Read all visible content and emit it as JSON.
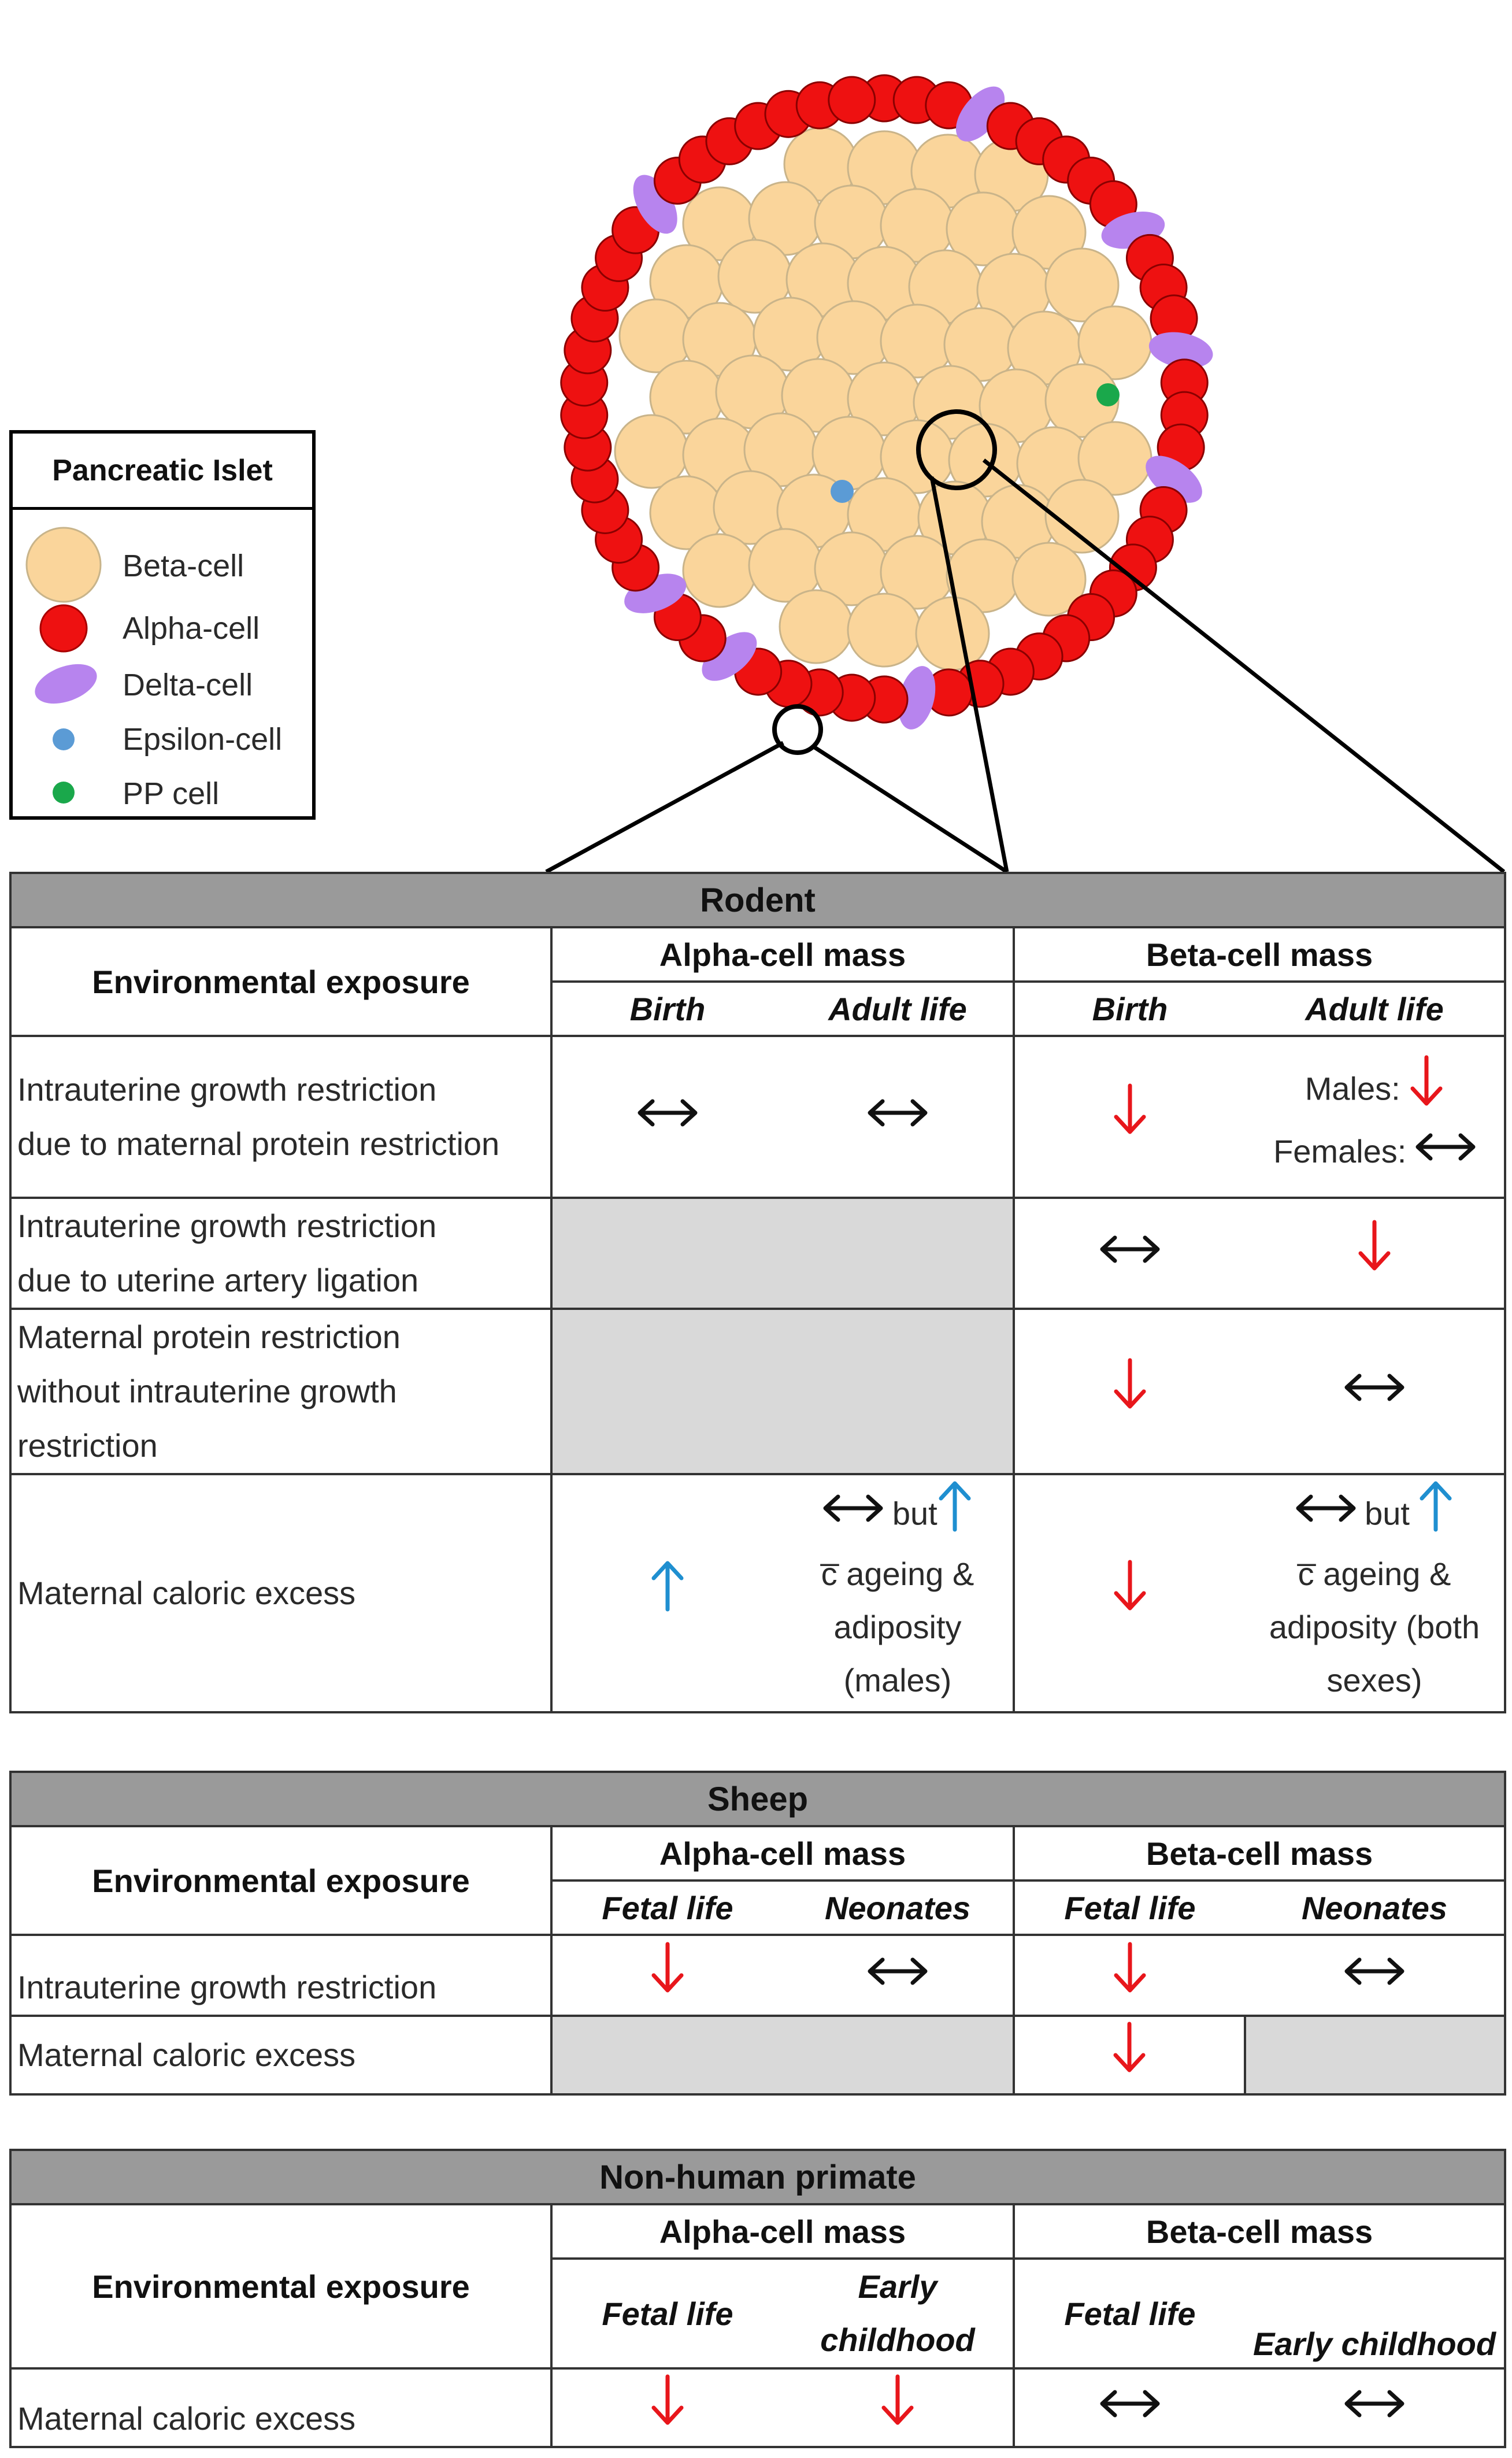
{
  "legend": {
    "title": "Pancreatic Islet",
    "items": [
      {
        "label": "Beta-cell",
        "color": "#fad59b"
      },
      {
        "label": "Alpha-cell",
        "color": "#ee1111"
      },
      {
        "label": "Delta-cell",
        "color": "#b784ee"
      },
      {
        "label": "Epsilon-cell",
        "color": "#5b9bd5"
      },
      {
        "label": "PP cell",
        "color": "#1aa84b"
      }
    ]
  },
  "arrows": {
    "down_color": "#e8161b",
    "up_color": "#1f8fd0",
    "flat_color": "#111111"
  },
  "rodent": {
    "title": "Rodent",
    "exposure_header": "Environmental exposure",
    "alpha_header": "Alpha-cell mass",
    "beta_header": "Beta-cell mass",
    "sub_headers": [
      "Birth",
      "Adult life",
      "Birth",
      "Adult life"
    ],
    "rows": [
      {
        "exposure": [
          "Intrauterine growth restriction",
          "due to maternal protein restriction"
        ],
        "alpha_birth": "flat",
        "alpha_adult": "flat",
        "beta_birth": "down",
        "beta_adult_males": "Males:",
        "beta_adult_females": "Females:"
      },
      {
        "exposure": [
          "Intrauterine growth restriction",
          "due to uterine artery ligation"
        ],
        "beta_birth": "flat",
        "beta_adult": "down"
      },
      {
        "exposure": [
          "Maternal protein restriction",
          "without intrauterine growth",
          "restriction"
        ],
        "beta_birth": "down",
        "beta_adult": "flat"
      },
      {
        "exposure": [
          "Maternal caloric excess"
        ],
        "alpha_birth": "up",
        "alpha_adult_text": [
          "but",
          "c̅ ageing &",
          "adiposity",
          "(males)"
        ],
        "beta_birth": "down",
        "beta_adult_text": [
          "but",
          "c̅ ageing &",
          "adiposity (both",
          "sexes)"
        ]
      }
    ]
  },
  "sheep": {
    "title": "Sheep",
    "exposure_header": "Environmental exposure",
    "alpha_header": "Alpha-cell mass",
    "beta_header": "Beta-cell mass",
    "sub_headers": [
      "Fetal life",
      "Neonates",
      "Fetal life",
      "Neonates"
    ],
    "rows": [
      {
        "exposure": "Intrauterine growth restriction"
      },
      {
        "exposure": "Maternal caloric excess"
      }
    ]
  },
  "primate": {
    "title": "Non-human primate",
    "exposure_header": "Environmental exposure",
    "alpha_header": "Alpha-cell mass",
    "beta_header": "Beta-cell mass",
    "sub_headers": [
      "Fetal life",
      "Early",
      "childhood",
      "Fetal life",
      "Early childhood"
    ],
    "rows": [
      {
        "exposure": "Maternal caloric excess"
      }
    ]
  }
}
